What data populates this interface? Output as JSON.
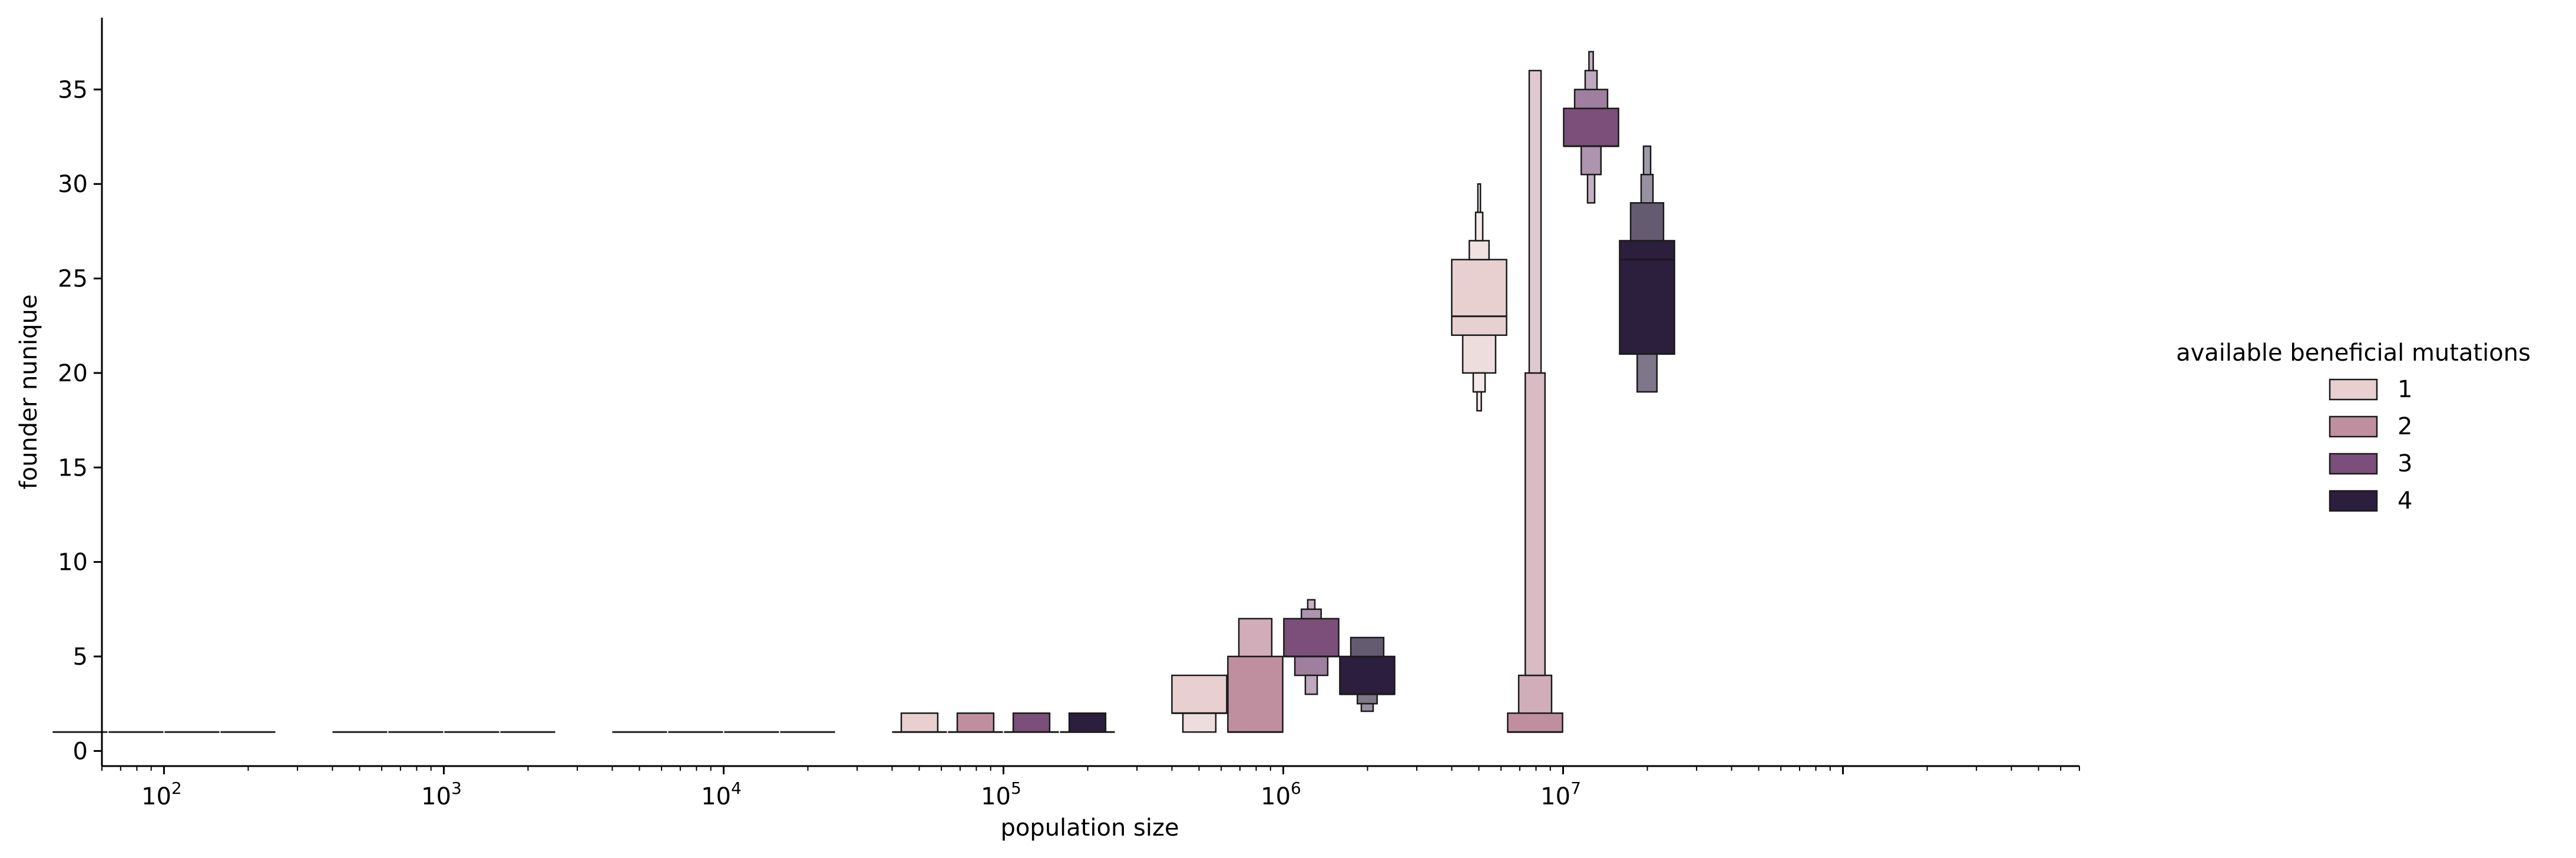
{
  "chart_data": {
    "type": "boxen",
    "xlabel": "population size",
    "ylabel": "founder nunique",
    "xscale": "log",
    "xlim": [
      60,
      700000000
    ],
    "ylim": [
      -0.8,
      38.8
    ],
    "yticks": [
      0,
      5,
      10,
      15,
      20,
      25,
      30,
      35
    ],
    "xticks": [
      {
        "base": "10",
        "exp": "2",
        "value": 100
      },
      {
        "base": "10",
        "exp": "3",
        "value": 1000
      },
      {
        "base": "10",
        "exp": "4",
        "value": 10000
      },
      {
        "base": "10",
        "exp": "5",
        "value": 100000
      },
      {
        "base": "10",
        "exp": "6",
        "value": 1000000
      },
      {
        "base": "10",
        "exp": "7",
        "value": 10000000
      }
    ],
    "legend": {
      "title": "available beneficial mutations",
      "placement": "outside-right",
      "entries": [
        {
          "label": "1",
          "color": "#e8d0d0"
        },
        {
          "label": "2",
          "color": "#c08f9f"
        },
        {
          "label": "3",
          "color": "#7b4f7a"
        },
        {
          "label": "4",
          "color": "#2c1e3d"
        }
      ]
    },
    "groups": [
      {
        "population_size": 100,
        "boxes": [
          {
            "hue": "1",
            "median": 1,
            "levels": []
          },
          {
            "hue": "2",
            "median": 1,
            "levels": []
          },
          {
            "hue": "3",
            "median": 1,
            "levels": []
          },
          {
            "hue": "4",
            "median": 1,
            "levels": []
          }
        ]
      },
      {
        "population_size": 1000,
        "boxes": [
          {
            "hue": "1",
            "median": 1,
            "levels": []
          },
          {
            "hue": "2",
            "median": 1,
            "levels": []
          },
          {
            "hue": "3",
            "median": 1,
            "levels": []
          },
          {
            "hue": "4",
            "median": 1,
            "levels": []
          }
        ]
      },
      {
        "population_size": 10000,
        "boxes": [
          {
            "hue": "1",
            "median": 1,
            "levels": []
          },
          {
            "hue": "2",
            "median": 1,
            "levels": []
          },
          {
            "hue": "3",
            "median": 1,
            "levels": []
          },
          {
            "hue": "4",
            "median": 1,
            "levels": []
          }
        ]
      },
      {
        "population_size": 100000,
        "boxes": [
          {
            "hue": "1",
            "median": 1,
            "levels": [
              [
                1,
                2
              ]
            ]
          },
          {
            "hue": "2",
            "median": 1,
            "levels": [
              [
                1,
                2
              ]
            ]
          },
          {
            "hue": "3",
            "median": 1,
            "levels": [
              [
                1,
                2
              ]
            ]
          },
          {
            "hue": "4",
            "median": 1,
            "levels": [
              [
                1,
                2
              ]
            ]
          }
        ]
      },
      {
        "population_size": 1000000,
        "boxes": [
          {
            "hue": "1",
            "median": 2,
            "levels": [
              [
                2,
                4
              ],
              [
                1,
                2
              ]
            ]
          },
          {
            "hue": "2",
            "median": 1,
            "levels": [
              [
                1,
                5
              ],
              [
                5,
                7
              ]
            ]
          },
          {
            "hue": "3",
            "median": 5,
            "levels": [
              [
                5,
                7
              ],
              [
                4,
                5
              ],
              [
                7,
                7.5
              ],
              [
                3,
                4
              ],
              [
                7.5,
                8
              ]
            ]
          },
          {
            "hue": "4",
            "median": 3,
            "levels": [
              [
                3,
                5
              ],
              [
                5,
                6
              ],
              [
                2.5,
                3
              ],
              [
                2.1,
                2.5
              ]
            ]
          }
        ]
      },
      {
        "population_size": 10000000,
        "boxes": [
          {
            "hue": "1",
            "median": 23,
            "levels": [
              [
                22,
                26
              ],
              [
                20,
                22
              ],
              [
                26,
                27
              ],
              [
                19,
                20
              ],
              [
                27,
                28.5
              ],
              [
                18,
                19
              ],
              [
                28.5,
                30
              ]
            ]
          },
          {
            "hue": "2",
            "median": 1,
            "levels": [
              [
                1,
                2
              ],
              [
                2,
                4
              ],
              [
                4,
                20
              ],
              [
                20,
                36
              ]
            ]
          },
          {
            "hue": "3",
            "median": 32,
            "levels": [
              [
                32,
                34
              ],
              [
                34,
                35
              ],
              [
                30.5,
                32
              ],
              [
                35,
                36
              ],
              [
                29,
                30.5
              ],
              [
                36,
                37
              ]
            ]
          },
          {
            "hue": "4",
            "median": 26,
            "levels": [
              [
                21,
                27
              ],
              [
                27,
                29
              ],
              [
                19,
                21
              ],
              [
                29,
                30.5
              ],
              [
                30.5,
                32
              ]
            ]
          }
        ]
      }
    ]
  }
}
